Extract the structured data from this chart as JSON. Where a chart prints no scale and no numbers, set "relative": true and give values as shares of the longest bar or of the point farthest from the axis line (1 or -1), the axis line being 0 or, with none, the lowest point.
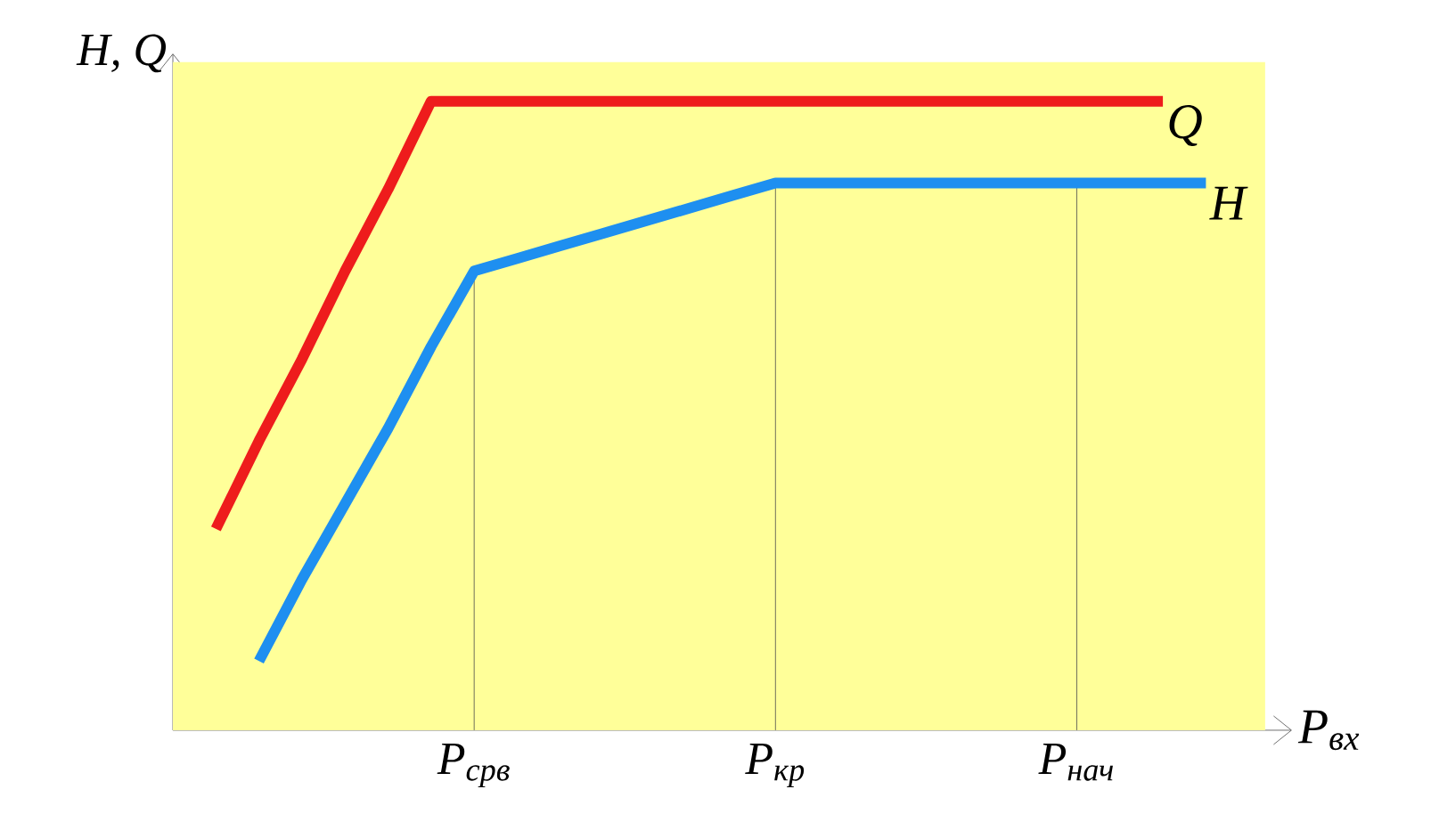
{
  "chart_data": {
    "type": "line",
    "relative": true,
    "xlabel": "P$_{вх}$",
    "ylabel": "H, Q",
    "categories": [
      null,
      null,
      null,
      null,
      null,
      null,
      null,
      "P$_{срв}$",
      null,
      null,
      null,
      null,
      null,
      null,
      "P$_{кр}$",
      null,
      null,
      null,
      null,
      null,
      null,
      "P$_{нач}$",
      null,
      null,
      null,
      null,
      null
    ],
    "series": [
      {
        "name": "Q",
        "color": "#ee1c1c",
        "values": [
          null,
          0.32,
          0.46,
          0.59,
          0.73,
          0.86,
          1,
          1,
          1,
          1,
          1,
          1,
          1,
          1,
          1,
          1,
          1,
          1,
          1,
          1,
          1,
          1,
          1,
          1,
          null,
          null,
          null
        ]
      },
      {
        "name": "H",
        "color": "#1e8ff0",
        "values": [
          null,
          null,
          0.11,
          0.24,
          0.36,
          0.48,
          0.61,
          0.73,
          0.75,
          0.77,
          0.79,
          0.81,
          0.83,
          0.85,
          0.87,
          0.87,
          0.87,
          0.87,
          0.87,
          0.87,
          0.87,
          0.87,
          0.87,
          0.87,
          0.87,
          null,
          null
        ]
      }
    ],
    "ref_lines": [
      {
        "axis": "x",
        "value": "P$_{срв}$"
      },
      {
        "axis": "x",
        "value": "P$_{кр}$"
      },
      {
        "axis": "x",
        "value": "P$_{нач}$"
      }
    ],
    "line_style": "solid",
    "marker": "none"
  }
}
